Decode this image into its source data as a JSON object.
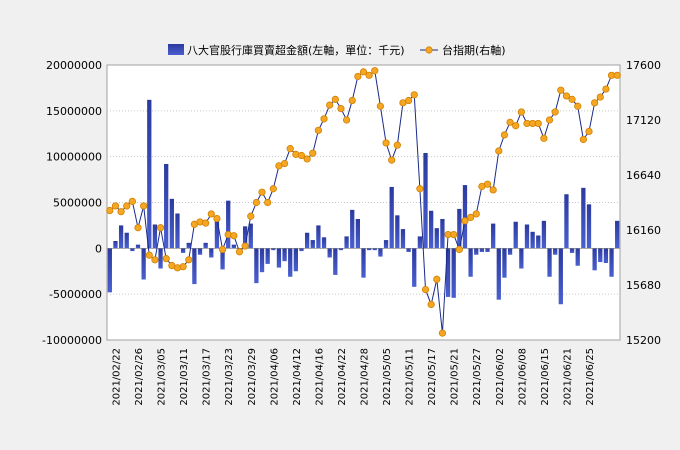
{
  "chart_data": {
    "type": "bar+line",
    "legend": {
      "bar_label": "八大官股行庫買賣超金額(左軸，單位：千元)",
      "line_label": "台指期(右軸)",
      "placement": "top"
    },
    "y_left": {
      "min": -10000000,
      "max": 20000000,
      "step": 5000000,
      "ticks": [
        "-10000000",
        "-5000000",
        "0",
        "5000000",
        "10000000",
        "15000000",
        "20000000"
      ]
    },
    "y_right": {
      "min": 15200,
      "max": 17600,
      "step": 480,
      "ticks": [
        "15200",
        "15680",
        "16160",
        "16640",
        "17120",
        "17600"
      ]
    },
    "x_tick_labels": [
      "2021/02/22",
      "2021/02/26",
      "2021/03/05",
      "2021/03/11",
      "2021/03/17",
      "2021/03/23",
      "2021/03/29",
      "2021/04/06",
      "2021/04/12",
      "2021/04/16",
      "2021/04/22",
      "2021/04/28",
      "2021/05/05",
      "2021/05/11",
      "2021/05/17",
      "2021/05/21",
      "2021/05/27",
      "2021/06/02",
      "2021/06/08",
      "2021/06/15",
      "2021/06/21",
      "2021/06/25"
    ],
    "tick_every": 4,
    "grid": true,
    "colors": {
      "bar_top": "#2b3a9e",
      "bar_bottom": "#4a60d0",
      "line": "#1a2a8a",
      "marker_fill": "#f5a623",
      "marker_edge": "#d08000",
      "grid": "#c8c8c8"
    },
    "bars": [
      -4800000,
      800000,
      2500000,
      1700000,
      -300000,
      400000,
      -3400000,
      16200000,
      2600000,
      -2200000,
      9200000,
      5400000,
      3800000,
      -500000,
      600000,
      -3900000,
      -700000,
      600000,
      -1000000,
      3500000,
      -2300000,
      5200000,
      400000,
      -500000,
      2400000,
      2700000,
      -3800000,
      -2600000,
      -1700000,
      -200000,
      -2100000,
      -1400000,
      -3100000,
      -2500000,
      -300000,
      1700000,
      900000,
      2500000,
      1200000,
      -1000000,
      -2900000,
      -200000,
      1300000,
      4200000,
      3200000,
      -3200000,
      -200000,
      -200000,
      -900000,
      900000,
      6700000,
      3600000,
      2100000,
      -400000,
      -4200000,
      1300000,
      10400000,
      4100000,
      2200000,
      3200000,
      -5300000,
      -5400000,
      4300000,
      6900000,
      -3100000,
      -700000,
      -400000,
      -400000,
      2700000,
      -5600000,
      -3200000,
      -700000,
      2900000,
      -2200000,
      2600000,
      1800000,
      1400000,
      3000000,
      -3100000,
      -700000,
      -6100000,
      5900000,
      -500000,
      -1900000,
      6600000,
      4800000,
      -2400000,
      -1500000,
      -1600000,
      -3100000,
      3000000
    ],
    "line": [
      16330,
      16370,
      16320,
      16370,
      16410,
      16180,
      16370,
      15940,
      15900,
      16180,
      15910,
      15850,
      15830,
      15840,
      15900,
      16210,
      16230,
      16220,
      16300,
      16260,
      15990,
      16120,
      16110,
      15970,
      16020,
      16280,
      16400,
      16490,
      16400,
      16520,
      16720,
      16740,
      16870,
      16820,
      16810,
      16780,
      16830,
      17030,
      17130,
      17250,
      17300,
      17220,
      17120,
      17290,
      17500,
      17540,
      17510,
      17550,
      17240,
      16920,
      16770,
      16900,
      17270,
      17290,
      17340,
      16520,
      15640,
      15510,
      15730,
      15260,
      16120,
      16120,
      15990,
      16240,
      16270,
      16300,
      16540,
      16560,
      16510,
      16850,
      16990,
      17100,
      17070,
      17190,
      17090,
      17090,
      17090,
      16960,
      17120,
      17190,
      17380,
      17330,
      17300,
      17240,
      16950,
      17020,
      17270,
      17320,
      17390,
      17510,
      17510
    ]
  }
}
